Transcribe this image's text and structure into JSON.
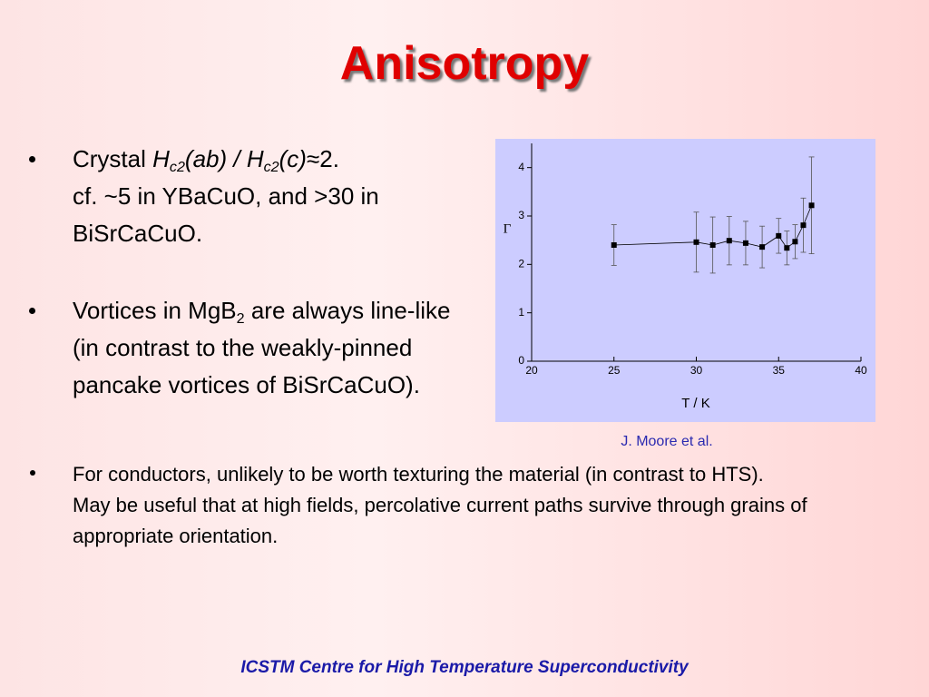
{
  "title": "Anisotropy",
  "bullets": [
    [
      "Crystal ",
      "H",
      "c2",
      "(ab) / ",
      "H",
      "c2",
      "(c)",
      "≈2.",
      "cf. ~5 in YBaCuO, and >30 in BiSrCaCuO."
    ],
    [
      "Vortices in MgB",
      "2",
      " are always line-like (in contrast to the weakly-pinned pancake vortices of BiSrCaCuO)."
    ],
    [
      "For conductors, unlikely to be worth texturing the material (in contrast to HTS).",
      "May be useful that at high fields, percolative current paths survive through grains of appropriate orientation."
    ]
  ],
  "chart_data": {
    "type": "errorbar",
    "x_label": "T / K",
    "y_label": "Γ",
    "x": [
      25,
      30,
      31,
      32,
      33,
      34,
      35,
      35.5,
      36,
      36.5,
      37
    ],
    "values": [
      2.4,
      2.46,
      2.4,
      2.49,
      2.44,
      2.36,
      2.59,
      2.34,
      2.47,
      2.81,
      3.22
    ],
    "errors": [
      0.42,
      0.62,
      0.58,
      0.5,
      0.45,
      0.43,
      0.36,
      0.35,
      0.35,
      0.56,
      1.0
    ],
    "color": "#000000",
    "background": "#ccccff",
    "xlim": [
      20,
      40
    ],
    "xticks": [
      20,
      25,
      30,
      35,
      40
    ],
    "ylim": [
      0,
      4.5
    ],
    "yticks": [
      0,
      1,
      2,
      3,
      4
    ]
  },
  "credit": "J. Moore et al.",
  "footer": "ICSTM Centre for High Temperature Superconductivity"
}
